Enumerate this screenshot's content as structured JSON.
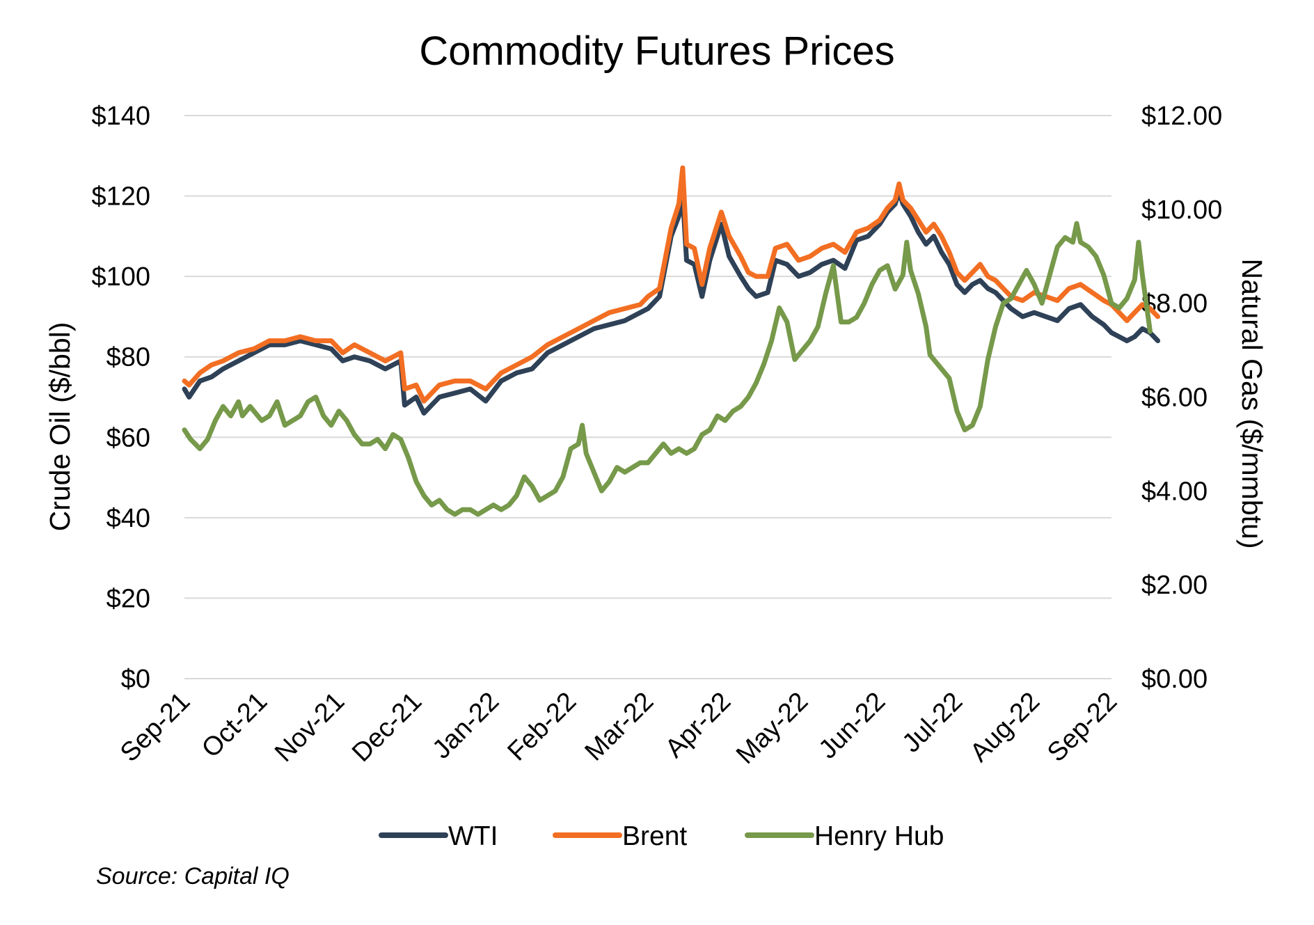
{
  "chart_data": {
    "type": "line",
    "title": "Commodity Futures Prices",
    "source": "Source: Capital IQ",
    "x_ticks": [
      "Sep-21",
      "Oct-21",
      "Nov-21",
      "Dec-21",
      "Jan-22",
      "Feb-22",
      "Mar-22",
      "Apr-22",
      "May-22",
      "Jun-22",
      "Jul-22",
      "Aug-22",
      "Sep-22"
    ],
    "y_left": {
      "label": "Crude Oil ($/bbl)",
      "min": 0,
      "max": 140,
      "ticks": [
        "$0",
        "$20",
        "$40",
        "$60",
        "$80",
        "$100",
        "$120",
        "$140"
      ]
    },
    "y_right": {
      "label": "Natural Gas ($/mmbtu)",
      "min": 0,
      "max": 12,
      "ticks": [
        "$0.00",
        "$2.00",
        "$4.00",
        "$6.00",
        "$8.00",
        "$10.00",
        "$12.00"
      ]
    },
    "grid": true,
    "legend_position": "bottom",
    "series": [
      {
        "name": "WTI",
        "axis": "left",
        "color": "#2e4157",
        "points": [
          [
            0.0,
            72
          ],
          [
            0.06,
            70
          ],
          [
            0.2,
            74
          ],
          [
            0.35,
            75
          ],
          [
            0.5,
            77
          ],
          [
            0.7,
            79
          ],
          [
            0.9,
            81
          ],
          [
            1.1,
            83
          ],
          [
            1.3,
            83
          ],
          [
            1.5,
            84
          ],
          [
            1.7,
            83
          ],
          [
            1.9,
            82
          ],
          [
            2.05,
            79
          ],
          [
            2.2,
            80
          ],
          [
            2.4,
            79
          ],
          [
            2.6,
            77
          ],
          [
            2.8,
            79
          ],
          [
            2.85,
            68
          ],
          [
            3.0,
            70
          ],
          [
            3.1,
            66
          ],
          [
            3.3,
            70
          ],
          [
            3.5,
            71
          ],
          [
            3.7,
            72
          ],
          [
            3.9,
            69
          ],
          [
            4.1,
            74
          ],
          [
            4.3,
            76
          ],
          [
            4.5,
            77
          ],
          [
            4.7,
            81
          ],
          [
            4.9,
            83
          ],
          [
            5.1,
            85
          ],
          [
            5.3,
            87
          ],
          [
            5.5,
            88
          ],
          [
            5.7,
            89
          ],
          [
            5.9,
            91
          ],
          [
            6.0,
            92
          ],
          [
            6.15,
            95
          ],
          [
            6.3,
            110
          ],
          [
            6.4,
            115
          ],
          [
            6.45,
            120
          ],
          [
            6.5,
            104
          ],
          [
            6.6,
            103
          ],
          [
            6.7,
            95
          ],
          [
            6.8,
            104
          ],
          [
            6.95,
            113
          ],
          [
            7.05,
            105
          ],
          [
            7.2,
            100
          ],
          [
            7.3,
            97
          ],
          [
            7.4,
            95
          ],
          [
            7.55,
            96
          ],
          [
            7.65,
            104
          ],
          [
            7.8,
            103
          ],
          [
            7.95,
            100
          ],
          [
            8.1,
            101
          ],
          [
            8.25,
            103
          ],
          [
            8.4,
            104
          ],
          [
            8.55,
            102
          ],
          [
            8.7,
            109
          ],
          [
            8.85,
            110
          ],
          [
            9.0,
            113
          ],
          [
            9.1,
            116
          ],
          [
            9.2,
            118
          ],
          [
            9.25,
            121
          ],
          [
            9.3,
            118
          ],
          [
            9.4,
            115
          ],
          [
            9.5,
            111
          ],
          [
            9.6,
            108
          ],
          [
            9.7,
            110
          ],
          [
            9.8,
            106
          ],
          [
            9.9,
            103
          ],
          [
            10.0,
            98
          ],
          [
            10.1,
            96
          ],
          [
            10.2,
            98
          ],
          [
            10.3,
            99
          ],
          [
            10.4,
            97
          ],
          [
            10.5,
            96
          ],
          [
            10.6,
            94
          ],
          [
            10.7,
            92
          ],
          [
            10.85,
            90
          ],
          [
            11.0,
            91
          ],
          [
            11.15,
            90
          ],
          [
            11.3,
            89
          ],
          [
            11.45,
            92
          ],
          [
            11.6,
            93
          ],
          [
            11.75,
            90
          ],
          [
            11.9,
            88
          ],
          [
            12.0,
            86
          ],
          [
            12.1,
            85
          ],
          [
            12.2,
            84
          ],
          [
            12.3,
            85
          ],
          [
            12.4,
            87
          ],
          [
            12.5,
            86
          ],
          [
            12.6,
            84
          ]
        ]
      },
      {
        "name": "Brent",
        "axis": "left",
        "color": "#f26e22",
        "points": [
          [
            0.0,
            74
          ],
          [
            0.06,
            73
          ],
          [
            0.2,
            76
          ],
          [
            0.35,
            78
          ],
          [
            0.5,
            79
          ],
          [
            0.7,
            81
          ],
          [
            0.9,
            82
          ],
          [
            1.1,
            84
          ],
          [
            1.3,
            84
          ],
          [
            1.5,
            85
          ],
          [
            1.7,
            84
          ],
          [
            1.9,
            84
          ],
          [
            2.05,
            81
          ],
          [
            2.2,
            83
          ],
          [
            2.4,
            81
          ],
          [
            2.6,
            79
          ],
          [
            2.8,
            81
          ],
          [
            2.85,
            72
          ],
          [
            3.0,
            73
          ],
          [
            3.1,
            69
          ],
          [
            3.3,
            73
          ],
          [
            3.5,
            74
          ],
          [
            3.7,
            74
          ],
          [
            3.9,
            72
          ],
          [
            4.1,
            76
          ],
          [
            4.3,
            78
          ],
          [
            4.5,
            80
          ],
          [
            4.7,
            83
          ],
          [
            4.9,
            85
          ],
          [
            5.1,
            87
          ],
          [
            5.3,
            89
          ],
          [
            5.5,
            91
          ],
          [
            5.7,
            92
          ],
          [
            5.9,
            93
          ],
          [
            6.0,
            95
          ],
          [
            6.15,
            97
          ],
          [
            6.3,
            112
          ],
          [
            6.4,
            118
          ],
          [
            6.45,
            127
          ],
          [
            6.5,
            108
          ],
          [
            6.6,
            107
          ],
          [
            6.7,
            98
          ],
          [
            6.8,
            107
          ],
          [
            6.95,
            116
          ],
          [
            7.05,
            110
          ],
          [
            7.2,
            105
          ],
          [
            7.3,
            101
          ],
          [
            7.4,
            100
          ],
          [
            7.55,
            100
          ],
          [
            7.65,
            107
          ],
          [
            7.8,
            108
          ],
          [
            7.95,
            104
          ],
          [
            8.1,
            105
          ],
          [
            8.25,
            107
          ],
          [
            8.4,
            108
          ],
          [
            8.55,
            106
          ],
          [
            8.7,
            111
          ],
          [
            8.85,
            112
          ],
          [
            9.0,
            114
          ],
          [
            9.1,
            117
          ],
          [
            9.2,
            119
          ],
          [
            9.25,
            123
          ],
          [
            9.3,
            119
          ],
          [
            9.4,
            117
          ],
          [
            9.5,
            114
          ],
          [
            9.6,
            111
          ],
          [
            9.7,
            113
          ],
          [
            9.8,
            110
          ],
          [
            9.9,
            106
          ],
          [
            10.0,
            101
          ],
          [
            10.1,
            99
          ],
          [
            10.2,
            101
          ],
          [
            10.3,
            103
          ],
          [
            10.4,
            100
          ],
          [
            10.5,
            99
          ],
          [
            10.6,
            97
          ],
          [
            10.7,
            95
          ],
          [
            10.85,
            94
          ],
          [
            11.0,
            96
          ],
          [
            11.15,
            95
          ],
          [
            11.3,
            94
          ],
          [
            11.45,
            97
          ],
          [
            11.6,
            98
          ],
          [
            11.75,
            96
          ],
          [
            11.9,
            94
          ],
          [
            12.0,
            93
          ],
          [
            12.1,
            91
          ],
          [
            12.2,
            89
          ],
          [
            12.3,
            91
          ],
          [
            12.4,
            93
          ],
          [
            12.5,
            92
          ],
          [
            12.6,
            90
          ]
        ]
      },
      {
        "name": "Henry Hub",
        "axis": "right",
        "color": "#76994a",
        "points": [
          [
            0.0,
            5.3
          ],
          [
            0.08,
            5.1
          ],
          [
            0.2,
            4.9
          ],
          [
            0.3,
            5.1
          ],
          [
            0.4,
            5.5
          ],
          [
            0.5,
            5.8
          ],
          [
            0.6,
            5.6
          ],
          [
            0.7,
            5.9
          ],
          [
            0.75,
            5.6
          ],
          [
            0.85,
            5.8
          ],
          [
            1.0,
            5.5
          ],
          [
            1.1,
            5.6
          ],
          [
            1.2,
            5.9
          ],
          [
            1.3,
            5.4
          ],
          [
            1.5,
            5.6
          ],
          [
            1.6,
            5.9
          ],
          [
            1.7,
            6.0
          ],
          [
            1.8,
            5.6
          ],
          [
            1.9,
            5.4
          ],
          [
            2.0,
            5.7
          ],
          [
            2.1,
            5.5
          ],
          [
            2.2,
            5.2
          ],
          [
            2.3,
            5.0
          ],
          [
            2.4,
            5.0
          ],
          [
            2.5,
            5.1
          ],
          [
            2.6,
            4.9
          ],
          [
            2.7,
            5.2
          ],
          [
            2.8,
            5.1
          ],
          [
            2.9,
            4.7
          ],
          [
            3.0,
            4.2
          ],
          [
            3.1,
            3.9
          ],
          [
            3.2,
            3.7
          ],
          [
            3.3,
            3.8
          ],
          [
            3.4,
            3.6
          ],
          [
            3.5,
            3.5
          ],
          [
            3.6,
            3.6
          ],
          [
            3.7,
            3.6
          ],
          [
            3.8,
            3.5
          ],
          [
            3.9,
            3.6
          ],
          [
            4.0,
            3.7
          ],
          [
            4.1,
            3.6
          ],
          [
            4.2,
            3.7
          ],
          [
            4.3,
            3.9
          ],
          [
            4.4,
            4.3
          ],
          [
            4.5,
            4.1
          ],
          [
            4.6,
            3.8
          ],
          [
            4.7,
            3.9
          ],
          [
            4.8,
            4.0
          ],
          [
            4.9,
            4.3
          ],
          [
            5.0,
            4.9
          ],
          [
            5.1,
            5.0
          ],
          [
            5.15,
            5.4
          ],
          [
            5.2,
            4.8
          ],
          [
            5.3,
            4.4
          ],
          [
            5.4,
            4.0
          ],
          [
            5.5,
            4.2
          ],
          [
            5.6,
            4.5
          ],
          [
            5.7,
            4.4
          ],
          [
            5.8,
            4.5
          ],
          [
            5.9,
            4.6
          ],
          [
            6.0,
            4.6
          ],
          [
            6.1,
            4.8
          ],
          [
            6.2,
            5.0
          ],
          [
            6.3,
            4.8
          ],
          [
            6.4,
            4.9
          ],
          [
            6.5,
            4.8
          ],
          [
            6.6,
            4.9
          ],
          [
            6.7,
            5.2
          ],
          [
            6.8,
            5.3
          ],
          [
            6.9,
            5.6
          ],
          [
            7.0,
            5.5
          ],
          [
            7.1,
            5.7
          ],
          [
            7.2,
            5.8
          ],
          [
            7.3,
            6.0
          ],
          [
            7.4,
            6.3
          ],
          [
            7.5,
            6.7
          ],
          [
            7.6,
            7.2
          ],
          [
            7.7,
            7.9
          ],
          [
            7.8,
            7.6
          ],
          [
            7.9,
            6.8
          ],
          [
            8.0,
            7.0
          ],
          [
            8.1,
            7.2
          ],
          [
            8.2,
            7.5
          ],
          [
            8.3,
            8.2
          ],
          [
            8.4,
            8.8
          ],
          [
            8.5,
            7.6
          ],
          [
            8.6,
            7.6
          ],
          [
            8.7,
            7.7
          ],
          [
            8.8,
            8.0
          ],
          [
            8.9,
            8.4
          ],
          [
            9.0,
            8.7
          ],
          [
            9.1,
            8.8
          ],
          [
            9.2,
            8.3
          ],
          [
            9.3,
            8.6
          ],
          [
            9.35,
            9.3
          ],
          [
            9.4,
            8.7
          ],
          [
            9.5,
            8.2
          ],
          [
            9.6,
            7.5
          ],
          [
            9.65,
            6.9
          ],
          [
            9.7,
            6.8
          ],
          [
            9.8,
            6.6
          ],
          [
            9.9,
            6.4
          ],
          [
            10.0,
            5.7
          ],
          [
            10.1,
            5.3
          ],
          [
            10.2,
            5.4
          ],
          [
            10.3,
            5.8
          ],
          [
            10.4,
            6.8
          ],
          [
            10.5,
            7.5
          ],
          [
            10.6,
            8.0
          ],
          [
            10.7,
            8.1
          ],
          [
            10.8,
            8.4
          ],
          [
            10.9,
            8.7
          ],
          [
            11.0,
            8.4
          ],
          [
            11.1,
            8.0
          ],
          [
            11.2,
            8.6
          ],
          [
            11.3,
            9.2
          ],
          [
            11.4,
            9.4
          ],
          [
            11.5,
            9.3
          ],
          [
            11.55,
            9.7
          ],
          [
            11.6,
            9.3
          ],
          [
            11.7,
            9.2
          ],
          [
            11.8,
            9.0
          ],
          [
            11.9,
            8.6
          ],
          [
            12.0,
            8.0
          ],
          [
            12.1,
            7.9
          ],
          [
            12.2,
            8.1
          ],
          [
            12.3,
            8.5
          ],
          [
            12.35,
            9.3
          ],
          [
            12.4,
            8.6
          ],
          [
            12.5,
            7.4
          ]
        ]
      }
    ]
  }
}
